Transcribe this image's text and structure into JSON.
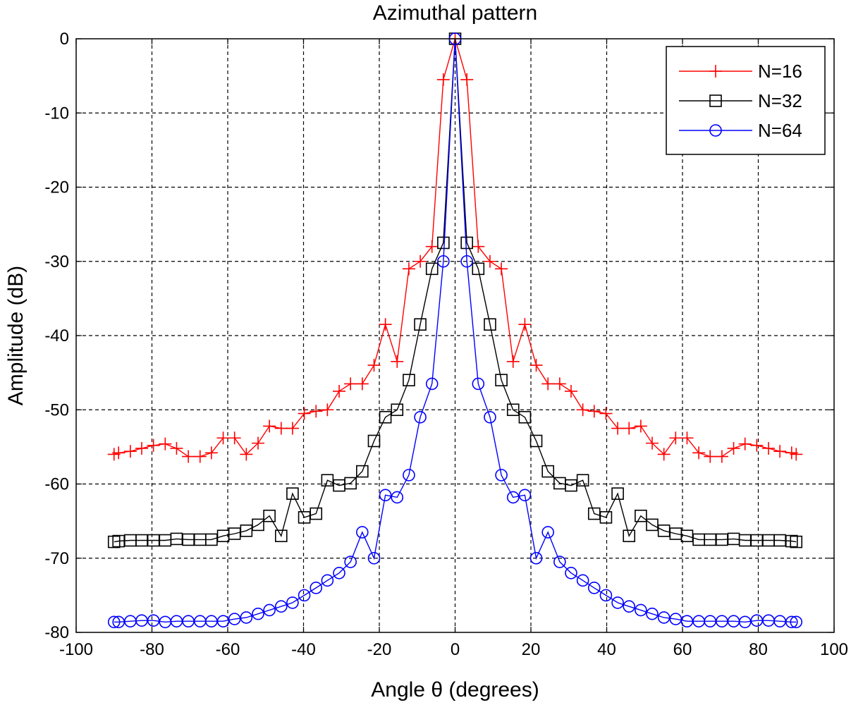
{
  "chart_data": {
    "type": "line",
    "title": "Azimuthal pattern",
    "xlabel": "Angle θ (degrees)",
    "ylabel": "Amplitude (dB)",
    "xlim": [
      -100,
      100
    ],
    "ylim": [
      -80,
      0
    ],
    "xticks": [
      -100,
      -80,
      -60,
      -40,
      -20,
      0,
      20,
      40,
      60,
      80,
      100
    ],
    "yticks": [
      0,
      -10,
      -20,
      -30,
      -40,
      -50,
      -60,
      -70,
      -80
    ],
    "grid": true,
    "legend_position": "top-right",
    "series": [
      {
        "name": "N=16",
        "color": "#ff0000",
        "marker": "plus",
        "x": [
          0,
          3.1,
          6.1,
          9.2,
          12.2,
          15.3,
          18.4,
          21.4,
          24.5,
          27.6,
          30.6,
          33.7,
          36.7,
          39.8,
          42.9,
          45.9,
          49,
          52,
          55.1,
          58.2,
          61.2,
          64.3,
          67.3,
          70.4,
          73.5,
          76.5,
          79.6,
          82.7,
          85.7,
          88.8,
          90
        ],
        "y": [
          0,
          -5.5,
          -28,
          -30,
          -31,
          -43.5,
          -38.5,
          -44,
          -46.5,
          -46.5,
          -47.5,
          -50,
          -50.2,
          -50.5,
          -52.5,
          -52.5,
          -52.2,
          -54.5,
          -56,
          -53.8,
          -53.8,
          -55.8,
          -56.3,
          -56.3,
          -55.2,
          -54.6,
          -54.8,
          -55.2,
          -55.6,
          -55.8,
          -56
        ]
      },
      {
        "name": "N=32",
        "color": "#000000",
        "marker": "square",
        "x": [
          0,
          3.1,
          6.1,
          9.2,
          12.2,
          15.3,
          18.4,
          21.4,
          24.5,
          27.6,
          30.6,
          33.7,
          36.7,
          39.8,
          42.9,
          45.9,
          49,
          52,
          55.1,
          58.2,
          61.2,
          64.3,
          67.3,
          70.4,
          73.5,
          76.5,
          79.6,
          82.7,
          85.7,
          88.8,
          90
        ],
        "y": [
          0,
          -27.5,
          -31,
          -38.5,
          -46,
          -50,
          -51,
          -54.2,
          -58.3,
          -59.9,
          -60.2,
          -59.5,
          -64,
          -64.5,
          -61.3,
          -67,
          -64.3,
          -65.5,
          -66.3,
          -66.7,
          -67,
          -67.5,
          -67.5,
          -67.5,
          -67.4,
          -67.6,
          -67.6,
          -67.6,
          -67.6,
          -67.7,
          -67.8
        ]
      },
      {
        "name": "N=64",
        "color": "#0000ff",
        "marker": "circle",
        "x": [
          0,
          3.1,
          6.1,
          9.2,
          12.2,
          15.3,
          18.4,
          21.4,
          24.5,
          27.6,
          30.6,
          33.7,
          36.7,
          39.8,
          42.9,
          45.9,
          49,
          52,
          55.1,
          58.2,
          61.2,
          64.3,
          67.3,
          70.4,
          73.5,
          76.5,
          79.6,
          82.7,
          85.7,
          88.8,
          90
        ],
        "y": [
          0,
          -30,
          -46.5,
          -51,
          -58.8,
          -61.8,
          -61.5,
          -70,
          -66.5,
          -70.5,
          -72,
          -73,
          -74,
          -75,
          -76,
          -76.5,
          -77,
          -77.5,
          -78,
          -78.2,
          -78.5,
          -78.5,
          -78.5,
          -78.5,
          -78.5,
          -78.6,
          -78.4,
          -78.4,
          -78.5,
          -78.6,
          -78.6
        ]
      }
    ]
  }
}
